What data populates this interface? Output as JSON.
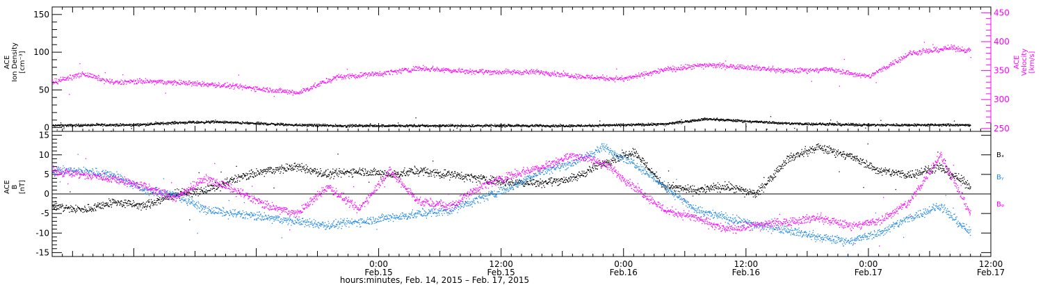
{
  "colors": {
    "axis": "#000000",
    "density": "#000000",
    "velocity": "#ff00ff",
    "bx": "#000000",
    "by": "#1e88e5",
    "bz": "#ff00ff"
  },
  "chart_data": [
    {
      "type": "scatter",
      "panel": "top",
      "x_range_hours": [
        -32,
        60
      ],
      "left_axis": {
        "title_lines": [
          "ACE",
          "Ion Density",
          "[cm⁻³]"
        ],
        "ylim": [
          -5,
          160
        ],
        "ticks": [
          0,
          50,
          100,
          150
        ],
        "tick_labels": [
          "0",
          "50",
          "100",
          "150"
        ]
      },
      "right_axis": {
        "title_lines": [
          "ACE",
          "Velocity",
          "[km/s]"
        ],
        "ylim": [
          245,
          460
        ],
        "ticks": [
          250,
          300,
          350,
          400,
          450
        ],
        "tick_labels": [
          "250",
          "300",
          "350",
          "400",
          "450"
        ]
      },
      "series": [
        {
          "key": "density",
          "axis": "left",
          "x": [
            -32,
            -28,
            -24,
            -20,
            -16,
            -12,
            -8,
            -4,
            0,
            4,
            8,
            12,
            16,
            20,
            24,
            28,
            32,
            36,
            40,
            44,
            48,
            52,
            56,
            58
          ],
          "y": [
            3,
            4,
            4,
            7,
            8,
            6,
            4,
            3,
            3,
            3,
            3,
            3,
            3,
            3,
            4,
            5,
            12,
            9,
            6,
            5,
            4,
            4,
            4,
            4
          ]
        },
        {
          "key": "velocity",
          "axis": "right",
          "x": [
            -32,
            -29,
            -26,
            -23,
            -20,
            -16,
            -12,
            -8,
            -4,
            0,
            4,
            8,
            12,
            16,
            20,
            24,
            28,
            32,
            36,
            40,
            44,
            48,
            52,
            56,
            58
          ],
          "y": [
            330,
            345,
            330,
            332,
            330,
            326,
            320,
            312,
            340,
            345,
            355,
            350,
            348,
            348,
            340,
            336,
            352,
            360,
            357,
            350,
            353,
            340,
            380,
            390,
            385
          ]
        }
      ]
    },
    {
      "type": "scatter",
      "panel": "bottom",
      "x_range_hours": [
        -32,
        60
      ],
      "axis": {
        "title_lines": [
          "ACE",
          "B",
          "[nT]"
        ],
        "ylim": [
          -16,
          16
        ],
        "ticks": [
          -15,
          -10,
          -5,
          0,
          5,
          10,
          15
        ],
        "tick_labels": [
          "-15",
          "-10",
          "-5",
          "0",
          "5",
          "10",
          "15"
        ]
      },
      "series": [
        {
          "key": "bx",
          "name": "Bₓ",
          "x": [
            -32,
            -29,
            -26,
            -23,
            -20,
            -17,
            -14,
            -11,
            -8,
            -5,
            -2,
            1,
            4,
            7,
            10,
            13,
            16,
            19,
            22,
            25,
            28,
            31,
            34,
            37,
            40,
            43,
            46,
            49,
            52,
            55,
            58
          ],
          "y": [
            -3,
            -4,
            -2,
            -3,
            0,
            1,
            4,
            6,
            7,
            5,
            6,
            5,
            6,
            5,
            4,
            3,
            3,
            4,
            8,
            11,
            2,
            1,
            2,
            0,
            9,
            12,
            10,
            6,
            5,
            7,
            2
          ]
        },
        {
          "key": "by",
          "name": "Bᵧ",
          "x": [
            -32,
            -29,
            -26,
            -23,
            -20,
            -17,
            -14,
            -11,
            -8,
            -5,
            -2,
            1,
            4,
            7,
            10,
            13,
            16,
            19,
            22,
            25,
            28,
            31,
            34,
            37,
            40,
            43,
            46,
            49,
            52,
            55,
            58
          ],
          "y": [
            6,
            6,
            5,
            1,
            0,
            -4,
            -5,
            -6,
            -7,
            -8,
            -7,
            -6,
            -5,
            -4,
            -1,
            2,
            6,
            8,
            12,
            8,
            2,
            -4,
            -6,
            -8,
            -9,
            -11,
            -12,
            -10,
            -6,
            -3,
            -10
          ]
        },
        {
          "key": "bz",
          "name": "Bᵩ",
          "x": [
            -32,
            -29,
            -26,
            -23,
            -20,
            -17,
            -14,
            -11,
            -8,
            -5,
            -2,
            1,
            4,
            7,
            10,
            13,
            16,
            19,
            22,
            25,
            28,
            31,
            34,
            37,
            40,
            43,
            46,
            49,
            52,
            55,
            58
          ],
          "y": [
            6,
            5,
            4,
            2,
            -1,
            4,
            1,
            -3,
            -5,
            2,
            -4,
            6,
            -2,
            -3,
            2,
            5,
            7,
            10,
            8,
            2,
            -4,
            -6,
            -9,
            -8,
            -7,
            -6,
            -8,
            -7,
            -2,
            10,
            -5
          ]
        }
      ],
      "legend": [
        {
          "key": "bx",
          "label": "Bₓ"
        },
        {
          "key": "by",
          "label": "Bᵧ"
        },
        {
          "key": "bz",
          "label": "Bᵩ"
        }
      ]
    }
  ],
  "x_axis": {
    "ticks": [
      {
        "hour": 0,
        "time": "0:00",
        "date": "Feb.15"
      },
      {
        "hour": 12,
        "time": "12:00",
        "date": "Feb.15"
      },
      {
        "hour": 24,
        "time": "0:00",
        "date": "Feb.16"
      },
      {
        "hour": 36,
        "time": "12:00",
        "date": "Feb.16"
      },
      {
        "hour": 48,
        "time": "0:00",
        "date": "Feb.17"
      },
      {
        "hour": 60,
        "time": "12:00",
        "date": "Feb.17"
      }
    ],
    "title": "hours:minutes, Feb. 14, 2015 – Feb. 17, 2015"
  }
}
